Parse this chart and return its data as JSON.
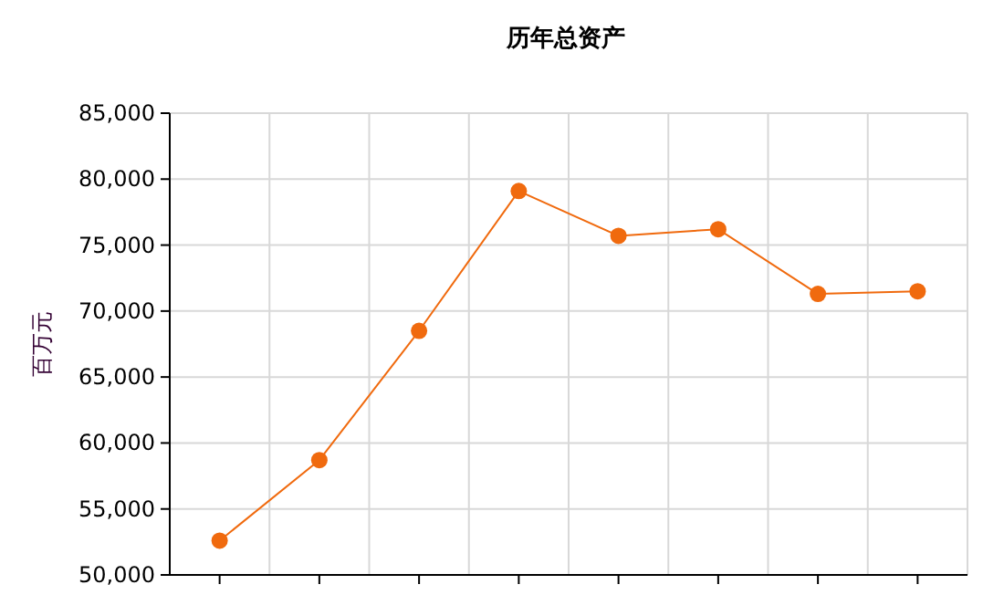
{
  "chart_data": {
    "type": "line",
    "title": "历年总资产",
    "ylabel": "百万元",
    "categories": [
      null,
      null,
      null,
      null,
      null,
      null,
      null,
      null
    ],
    "series": [
      {
        "color": "#f06a0e",
        "values": [
          52600,
          58700,
          68500,
          79100,
          75700,
          76200,
          71300,
          71500
        ]
      }
    ],
    "ylim": [
      50000,
      85000
    ],
    "yticks": [
      {
        "value": 50000,
        "label": "50,000"
      },
      {
        "value": 55000,
        "label": "55,000"
      },
      {
        "value": 60000,
        "label": "60,000"
      },
      {
        "value": 65000,
        "label": "65,000"
      },
      {
        "value": 70000,
        "label": "70,000"
      },
      {
        "value": 75000,
        "label": "75,000"
      },
      {
        "value": 80000,
        "label": "80,000"
      },
      {
        "value": 85000,
        "label": "85,000"
      }
    ],
    "grid": true,
    "marker": "circle",
    "line_style": "solid"
  }
}
